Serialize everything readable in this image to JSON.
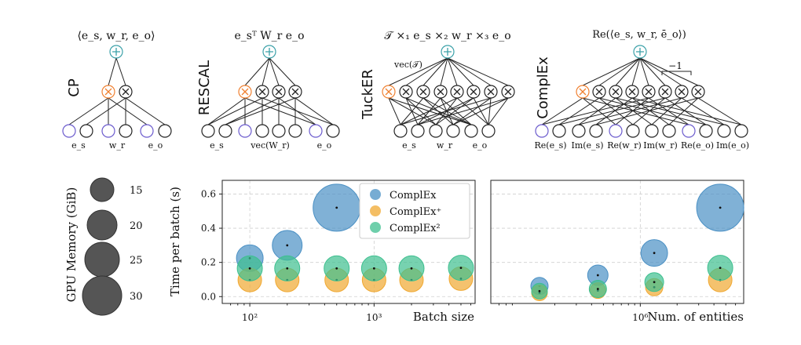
{
  "diagrams": [
    {
      "name": "CP",
      "formula": "⟨e_s, w_r, e_o⟩",
      "inputs": [
        "e_s",
        "w_r",
        "e_o"
      ]
    },
    {
      "name": "RESCAL",
      "formula": "e_sᵀ W_r e_o",
      "inputs": [
        "e_s",
        "vec(W_r)",
        "e_o"
      ]
    },
    {
      "name": "TuckER",
      "formula": "𝒯 ×₁ e_s ×₂ w_r ×₃ e_o",
      "core": "vec(𝒯)",
      "inputs": [
        "e_s",
        "w_r",
        "e_o"
      ]
    },
    {
      "name": "ComplEx",
      "formula": "Re(⟨e_s, w_r, ē_o⟩)",
      "neg": "−1",
      "inputs": [
        "Re(e_s)",
        "Im(e_s)",
        "Re(w_r)",
        "Im(w_r)",
        "Re(e_o)",
        "Im(e_o)"
      ]
    }
  ],
  "memory_legend": {
    "label": "GPU Memory (GiB)",
    "sizes": [
      "15",
      "20",
      "25",
      "30"
    ]
  },
  "colors": {
    "complex": "#4a90c4",
    "complex_plus": "#f0a830",
    "complex_2": "#3dbf8f",
    "accent_orange": "#f08030",
    "accent_teal": "#3aa0a8",
    "accent_purple": "#6a5acd"
  },
  "chart_data": [
    {
      "type": "scatter",
      "ylabel": "Time per batch (s)",
      "xlabel": "Batch size",
      "xscale": "log",
      "xlim": [
        60,
        6500
      ],
      "ylim": [
        -0.04,
        0.68
      ],
      "yticks": [
        "0.0",
        "0.2",
        "0.4",
        "0.6"
      ],
      "xticks": [
        "10²",
        "10³"
      ],
      "grid": true,
      "legend_position": "top-center",
      "series": [
        {
          "name": "ComplEx",
          "points": [
            [
              100,
              0.225,
              17
            ],
            [
              200,
              0.3,
              19
            ],
            [
              500,
              0.52,
              30
            ]
          ]
        },
        {
          "name": "ComplEx⁺",
          "points": [
            [
              100,
              0.097,
              15
            ],
            [
              200,
              0.097,
              15
            ],
            [
              500,
              0.097,
              15
            ],
            [
              1000,
              0.097,
              15
            ],
            [
              2000,
              0.097,
              15
            ],
            [
              5000,
              0.105,
              15
            ]
          ]
        },
        {
          "name": "ComplEx²",
          "points": [
            [
              100,
              0.165,
              16
            ],
            [
              200,
              0.165,
              16
            ],
            [
              500,
              0.165,
              16
            ],
            [
              1000,
              0.165,
              16
            ],
            [
              2000,
              0.165,
              16
            ],
            [
              5000,
              0.168,
              16
            ]
          ]
        }
      ]
    },
    {
      "type": "scatter",
      "xlabel": "Num. of entities",
      "xscale": "log",
      "xlim": [
        60000,
        7000000
      ],
      "ylim": [
        -0.04,
        0.68
      ],
      "xticks": [
        "10⁶"
      ],
      "grid": true,
      "series": [
        {
          "name": "ComplEx",
          "points": [
            [
              150000,
              0.062,
              11
            ],
            [
              450000,
              0.125,
              13
            ],
            [
              1300000,
              0.255,
              17
            ],
            [
              4500000,
              0.52,
              30
            ]
          ]
        },
        {
          "name": "ComplEx⁺",
          "points": [
            [
              150000,
              0.022,
              10
            ],
            [
              450000,
              0.035,
              10
            ],
            [
              1300000,
              0.055,
              11
            ],
            [
              4500000,
              0.097,
              15
            ]
          ]
        },
        {
          "name": "ComplEx²",
          "points": [
            [
              150000,
              0.032,
              10
            ],
            [
              450000,
              0.045,
              11
            ],
            [
              1300000,
              0.085,
              12
            ],
            [
              4500000,
              0.168,
              16
            ]
          ]
        }
      ]
    }
  ]
}
